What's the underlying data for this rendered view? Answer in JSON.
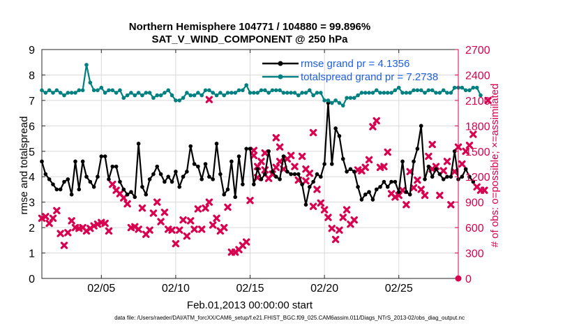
{
  "chart_data": {
    "type": "line",
    "title": "Northern Hemisphere 104771 / 104880 = 99.896%",
    "subtitle": "SAT_V_WIND_COMPONENT @ 250 hPa",
    "xlabel": "Feb.01,2013 00:00:00 start",
    "ylabel": "rmse and totalspread",
    "y2label": "# of obs: o=possible; ×=assimilated",
    "xlim": [
      1,
      29
    ],
    "ylim": [
      0,
      9
    ],
    "y2lim": [
      0,
      2700
    ],
    "x_ticks": [
      5,
      10,
      15,
      20,
      25
    ],
    "x_tick_labels": [
      "02/05",
      "02/10",
      "02/15",
      "02/20",
      "02/25"
    ],
    "y_ticks": [
      0,
      1,
      2,
      3,
      4,
      5,
      6,
      7,
      8,
      9
    ],
    "y_tick_labels": [
      "0",
      "1",
      "2",
      "3",
      "4",
      "5",
      "6",
      "7",
      "8",
      "9"
    ],
    "y2_ticks": [
      0,
      300,
      600,
      900,
      1200,
      1500,
      1800,
      2100,
      2400,
      2700
    ],
    "y2_tick_labels": [
      "0",
      "300",
      "600",
      "900",
      "1200",
      "1500",
      "1800",
      "2100",
      "2400",
      "2700"
    ],
    "grid": true,
    "legend_position": "top-right",
    "series": [
      {
        "name": "rmse grand pr = 4.1356",
        "color": "#000000",
        "axis": "left",
        "x0": 1.0,
        "dx": 0.25,
        "values": [
          4.6,
          4.1,
          3.9,
          3.7,
          3.5,
          3.5,
          3.8,
          3.9,
          3.3,
          4.6,
          3.5,
          4.6,
          4.0,
          3.8,
          3.6,
          4.0,
          4.8,
          4.8,
          3.9,
          4.4,
          4.4,
          3.8,
          3.5,
          3.3,
          3.4,
          3.2,
          5.3,
          3.6,
          3.3,
          3.9,
          4.1,
          4.4,
          4.1,
          3.8,
          4.0,
          3.8,
          4.2,
          3.6,
          4.0,
          4.2,
          5.2,
          4.5,
          4.4,
          3.9,
          4.5,
          4.0,
          3.9,
          5.3,
          4.1,
          3.3,
          3.5,
          4.6,
          3.2,
          4.8,
          3.7,
          5.1,
          5.1,
          3.7,
          4.3,
          3.9,
          4.1,
          5.0,
          4.2,
          4.0,
          3.9,
          4.8,
          4.2,
          4.1,
          4.1,
          4.1,
          3.7,
          2.9,
          3.6,
          3.8,
          4.1,
          4.0,
          4.5,
          6.9,
          4.5,
          5.9,
          5.6,
          4.7,
          4.2,
          4.3,
          4.2,
          3.6,
          3.1,
          3.3,
          3.4,
          3.1,
          3.5,
          3.6,
          3.8,
          3.6,
          3.8,
          3.8,
          3.4,
          4.6,
          3.4,
          3.3,
          4.6,
          5.1,
          6.0,
          3.9,
          4.4,
          4.0,
          4.3,
          4.1,
          3.9,
          4.0,
          4.0,
          5.0,
          3.9,
          4.0,
          4.3,
          4.0,
          3.8
        ]
      },
      {
        "name": "totalspread grand pr = 7.2738",
        "color": "#008080",
        "axis": "left",
        "x0": 1.0,
        "dx": 0.25,
        "values": [
          7.4,
          7.3,
          7.4,
          7.3,
          7.4,
          7.3,
          7.2,
          7.3,
          7.3,
          7.3,
          7.4,
          7.4,
          8.4,
          7.7,
          7.4,
          7.4,
          7.5,
          7.3,
          7.4,
          7.4,
          7.3,
          7.4,
          7.1,
          7.2,
          7.3,
          7.2,
          7.3,
          7.2,
          7.3,
          7.3,
          7.1,
          7.2,
          7.2,
          7.3,
          7.4,
          7.2,
          7.0,
          7.0,
          7.1,
          7.3,
          7.2,
          7.2,
          7.3,
          7.2,
          7.4,
          7.4,
          7.3,
          7.2,
          7.3,
          7.2,
          7.3,
          7.3,
          7.3,
          7.4,
          7.4,
          7.6,
          7.3,
          7.3,
          7.3,
          7.4,
          7.4,
          7.3,
          7.4,
          7.4,
          7.4,
          7.3,
          7.3,
          7.3,
          7.3,
          7.2,
          7.3,
          7.3,
          7.4,
          7.2,
          7.3,
          7.3,
          7.0,
          7.0,
          6.9,
          7.0,
          6.9,
          6.8,
          7.1,
          7.1,
          7.1,
          7.2,
          7.3,
          7.3,
          7.3,
          7.3,
          7.4,
          7.3,
          7.3,
          7.3,
          7.3,
          7.4,
          7.5,
          7.3,
          7.3,
          7.3,
          7.4,
          7.4,
          7.4,
          7.3,
          7.4,
          7.4,
          7.3,
          7.3,
          7.4,
          7.3,
          7.3,
          7.5,
          7.5,
          7.5,
          7.4,
          7.4,
          7.5,
          7.5,
          7.2
        ]
      },
      {
        "name": "# obs assimilated",
        "color": "#d8004f",
        "axis": "right",
        "marker": "x",
        "x0": 1.0,
        "dx": 0.25,
        "values": [
          710,
          730,
          650,
          710,
          800,
          530,
          390,
          540,
          680,
          600,
          590,
          600,
          560,
          590,
          620,
          640,
          660,
          650,
          560,
          1110,
          1040,
          1000,
          950,
          880,
          600,
          610,
          580,
          830,
          520,
          570,
          770,
          900,
          670,
          780,
          580,
          570,
          410,
          570,
          690,
          500,
          680,
          580,
          820,
          580,
          830,
          900,
          630,
          710,
          560,
          600,
          840,
          310,
          310,
          340,
          390,
          430,
          920,
          1450,
          1190,
          1380,
          1280,
          1180,
          1230,
          1310,
          1380,
          1290,
          1410,
          1450,
          1320,
          1160,
          1440,
          1150,
          1240,
          850,
          1050,
          890,
          810,
          720,
          590,
          460,
          570,
          720,
          810,
          640,
          690,
          1280,
          1270,
          1310,
          1400,
          1790,
          1860,
          1310,
          1320,
          1490,
          1000,
          960,
          980,
          1040,
          870,
          1260,
          1070,
          1160,
          1050,
          980,
          1440,
          1290,
          1320,
          980,
          1270,
          1380,
          870,
          1260,
          1550,
          1350,
          1500,
          1570,
          1700,
          1080,
          1040,
          1040,
          2100
        ]
      }
    ],
    "annotations": [
      {
        "x": 12.25,
        "y2": 2110
      },
      {
        "x": 15.25,
        "y2": 1510
      },
      {
        "x": 15.5,
        "y2": 1320
      },
      {
        "x": 16.0,
        "y2": 1480
      },
      {
        "x": 16.75,
        "y2": 1660
      },
      {
        "x": 17.0,
        "y2": 1550
      },
      {
        "x": 18.75,
        "y2": 1290
      },
      {
        "x": 19.25,
        "y2": 1720
      },
      {
        "x": 27.25,
        "y2": 1580
      }
    ],
    "footer": "data file: /Users/raeder/DAI/ATM_forcXX/CAM6_setup/f.e21.FHIST_BGC.f09_025.CAM6assim.011/Diags_NTrS_2013-02/obs_diag_output.nc"
  }
}
